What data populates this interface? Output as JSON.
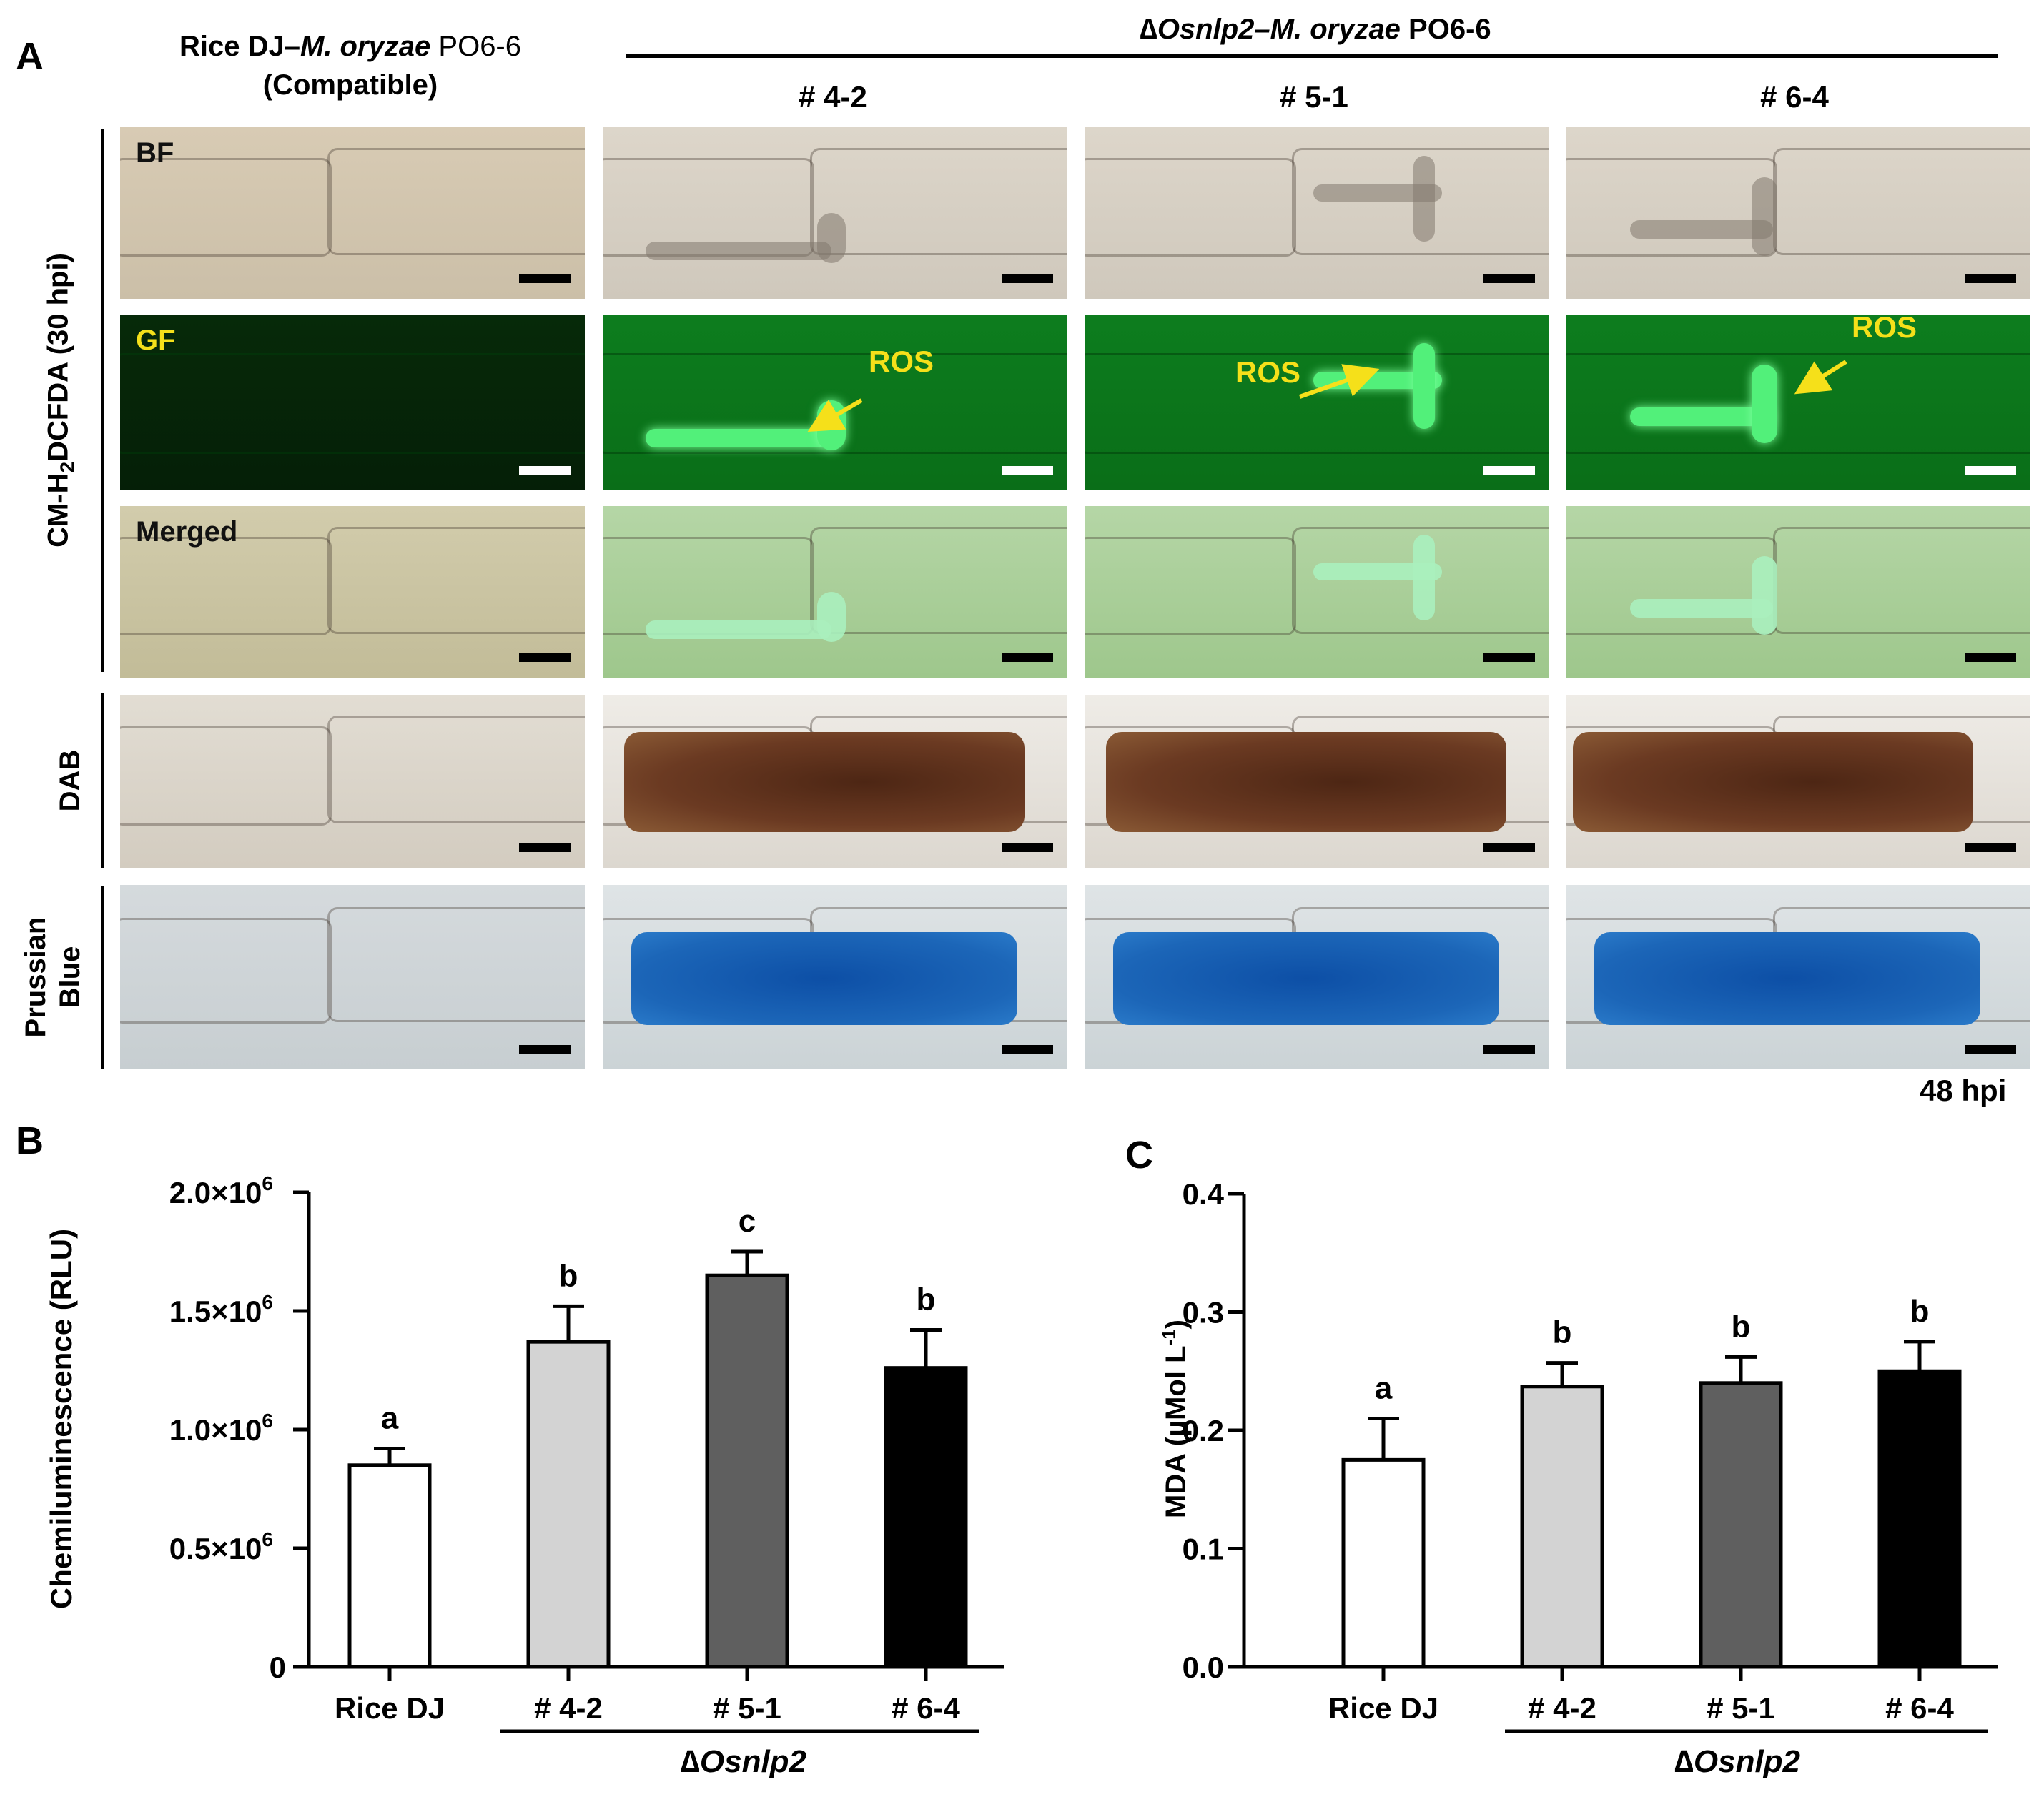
{
  "panelA": {
    "letter": "A",
    "compat_header_line1": "Rice DJ–",
    "compat_header_species": "M. oryzae",
    "compat_header_strain": " PO6-6",
    "compat_header_line2": "(Compatible)",
    "mutant_header_delta": "∆",
    "mutant_header_gene": "Osnlp2–M. oryzae",
    "mutant_header_strain": " PO6-6",
    "columns": [
      "# 4-2",
      "# 5-1",
      "# 6-4"
    ],
    "row_group_label": "CM-H2DCFDA (30 hpi)",
    "row_group_prefix": "CM-H",
    "row_group_sub": "2",
    "row_group_suffix": "DCFDA (30 hpi)",
    "row_labels": {
      "dab": "DAB",
      "prussian_line1": "Prussian",
      "prussian_line2": "Blue"
    },
    "tile_labels": {
      "bf": "BF",
      "gf": "GF",
      "merged": "Merged"
    },
    "ros_label": "ROS",
    "time_label": "48 hpi",
    "colors": {
      "ros": "#f5e01a",
      "gf_bg": "#0b7a1c",
      "dab_stain": "#6b3a22",
      "prussian_stain": "#1c66b8"
    }
  },
  "panelB": {
    "letter": "B",
    "ylabel": "Chemiluminescence (RLU)",
    "group_label_delta": "∆",
    "group_label_gene": "Osnlp2"
  },
  "panelC": {
    "letter": "C",
    "ylabel": "MDA (µMol  L",
    "ylabel_sup": "-1",
    "ylabel_close": ")",
    "group_label_delta": "∆",
    "group_label_gene": "Osnlp2"
  },
  "chart_data": [
    {
      "type": "bar",
      "panel": "B",
      "categories": [
        "Rice DJ",
        "# 4-2",
        "# 5-1",
        "# 6-4"
      ],
      "values": [
        850000,
        1370000,
        1650000,
        1260000
      ],
      "errors": [
        70000,
        150000,
        100000,
        160000
      ],
      "significance": [
        "a",
        "b",
        "c",
        "b"
      ],
      "bar_colors": [
        "#ffffff",
        "#d3d3d3",
        "#5f5f5f",
        "#000000"
      ],
      "ylabel": "Chemiluminescence (RLU)",
      "ylim": [
        0,
        2000000
      ],
      "yticks": [
        0,
        500000,
        1000000,
        1500000,
        2000000
      ],
      "ytick_labels": [
        "0",
        "0.5×10",
        "1.0×10",
        "1.5×10",
        "2.0×10"
      ],
      "ytick_exp": [
        "",
        "6",
        "6",
        "6",
        "6"
      ],
      "grid": false
    },
    {
      "type": "bar",
      "panel": "C",
      "categories": [
        "Rice DJ",
        "# 4-2",
        "# 5-1",
        "# 6-4"
      ],
      "values": [
        0.175,
        0.237,
        0.24,
        0.25
      ],
      "errors": [
        0.035,
        0.02,
        0.022,
        0.025
      ],
      "significance": [
        "a",
        "b",
        "b",
        "b"
      ],
      "bar_colors": [
        "#ffffff",
        "#d3d3d3",
        "#5f5f5f",
        "#000000"
      ],
      "ylabel": "MDA (µMol  L-1)",
      "ylim": [
        0,
        0.4
      ],
      "yticks": [
        0,
        0.1,
        0.2,
        0.3,
        0.4
      ],
      "ytick_labels": [
        "0.0",
        "0.1",
        "0.2",
        "0.3",
        "0.4"
      ],
      "grid": false
    }
  ]
}
